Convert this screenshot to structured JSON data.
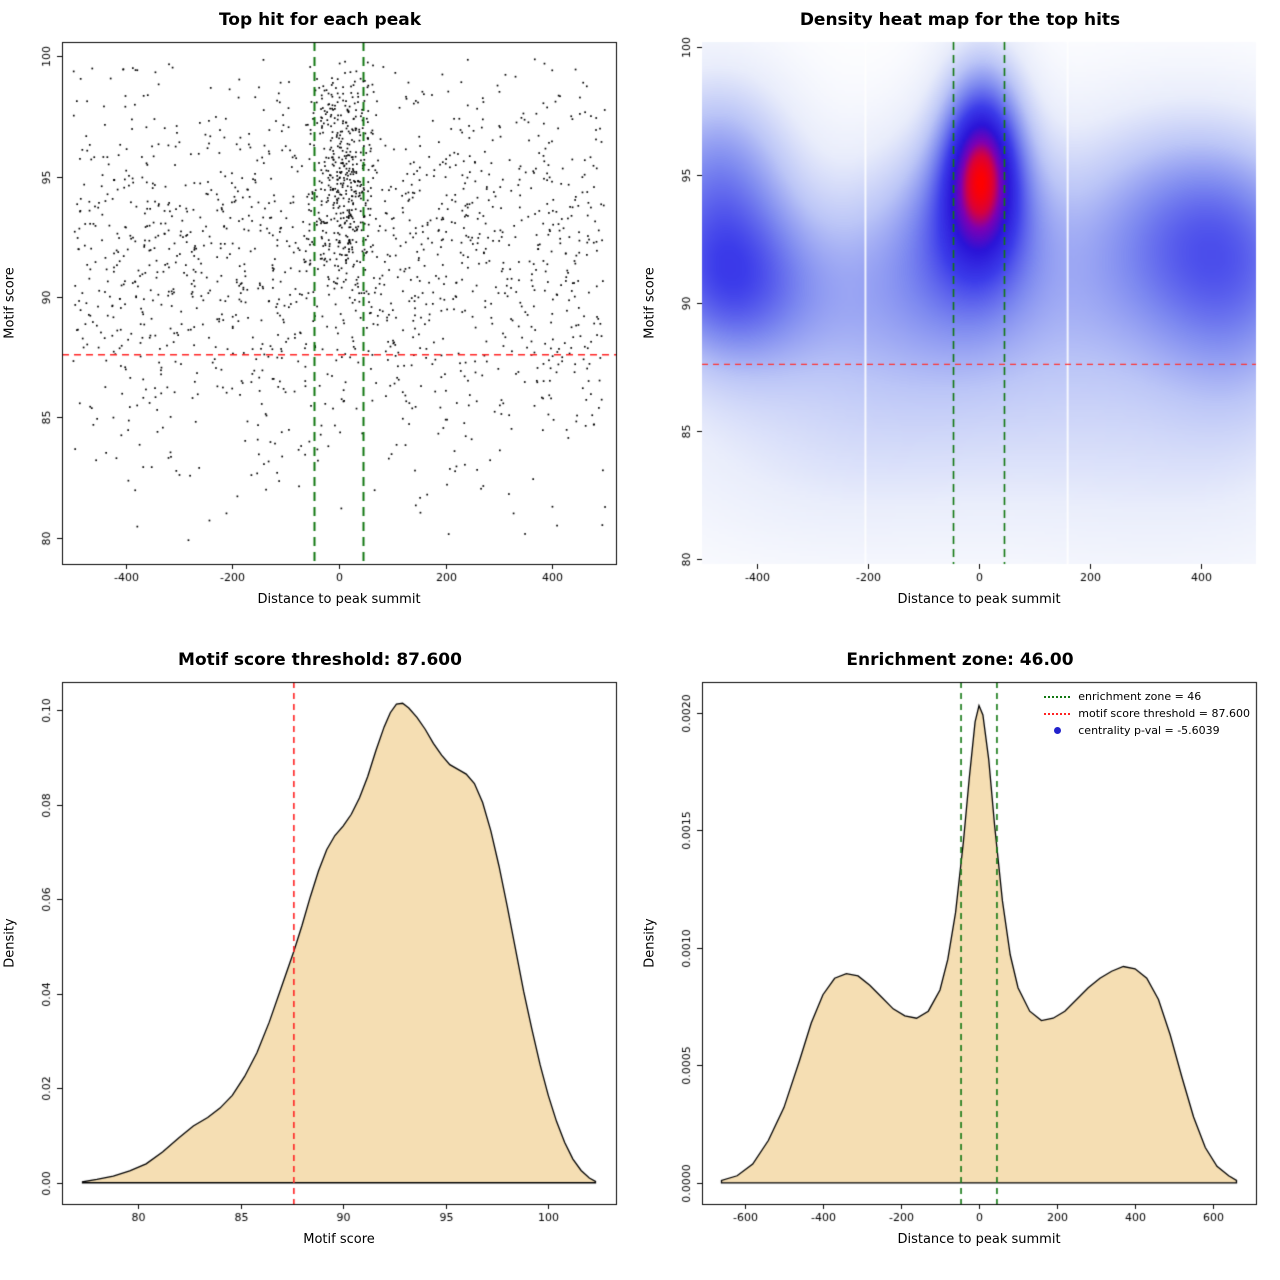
{
  "figure": {
    "background": "#ffffff"
  },
  "chart_data": [
    {
      "id": "top-hit-scatter",
      "type": "scatter",
      "title": "Top hit for each peak",
      "xlabel": "Distance to peak summit",
      "ylabel": "Motif score",
      "xlim": [
        -520,
        520
      ],
      "ylim": [
        78.9,
        100.6
      ],
      "xticks": {
        "values": [
          -400,
          -200,
          0,
          200,
          400
        ],
        "labels": [
          "-400",
          "-200",
          "0",
          "200",
          "400"
        ]
      },
      "yticks": {
        "values": [
          80,
          85,
          90,
          95,
          100
        ],
        "labels": [
          "80",
          "85",
          "90",
          "95",
          "100"
        ]
      },
      "point_color": "#000000",
      "threshold_line": {
        "y": 87.6,
        "color": "#ff2222",
        "style": "dashed"
      },
      "zone_lines": {
        "x": [
          -46,
          46
        ],
        "color": "#117711",
        "style": "dashed"
      },
      "points": {
        "seed": 11,
        "background": {
          "n": 1500,
          "x_min": -500,
          "x_max": 500,
          "y_mean": 91.4,
          "y_sd": 4.3,
          "y_min": 79.6,
          "y_max": 99.9
        },
        "cluster": {
          "n": 400,
          "x_mean": 12,
          "x_sd": 30,
          "x_min": -58,
          "x_max": 78,
          "y_mean": 95.2,
          "y_sd": 2.7,
          "y_min": 87.2,
          "y_max": 99.8
        }
      }
    },
    {
      "id": "density-heatmap",
      "type": "heatmap",
      "title": "Density heat map for the top hits",
      "xlabel": "Distance to peak summit",
      "ylabel": "Motif score",
      "xlim": [
        -500,
        500
      ],
      "ylim": [
        79.8,
        100.2
      ],
      "xticks": {
        "values": [
          -400,
          -200,
          0,
          200,
          400
        ],
        "labels": [
          "-400",
          "-200",
          "0",
          "200",
          "400"
        ]
      },
      "yticks": {
        "values": [
          80,
          85,
          90,
          95,
          100
        ],
        "labels": [
          "80",
          "85",
          "90",
          "95",
          "100"
        ]
      },
      "threshold_line": {
        "y": 87.6,
        "color": "#ff3333",
        "style": "dashed"
      },
      "zone_lines": {
        "x": [
          -46,
          46
        ],
        "color": "#117711",
        "style": "dashed"
      },
      "white_lines_x": [
        -205,
        160
      ],
      "gamma": 0.8,
      "colormap": [
        [
          0.0,
          "#ffffff"
        ],
        [
          0.15,
          "#e9edfb"
        ],
        [
          0.3,
          "#bcc6f7"
        ],
        [
          0.45,
          "#7e8af0"
        ],
        [
          0.62,
          "#3c3cea"
        ],
        [
          0.76,
          "#2a14d8"
        ],
        [
          0.87,
          "#7e00b4"
        ],
        [
          0.94,
          "#d8003c"
        ],
        [
          1.0,
          "#ff0000"
        ]
      ],
      "blobs": [
        {
          "x": 5,
          "y": 95.3,
          "sx": 46,
          "sy": 2.0,
          "w": 1.0
        },
        {
          "x": 0,
          "y": 93.6,
          "sx": 72,
          "sy": 2.6,
          "w": 0.62
        },
        {
          "x": 8,
          "y": 98.2,
          "sx": 55,
          "sy": 1.9,
          "w": 0.3
        },
        {
          "x": -70,
          "y": 92.6,
          "sx": 120,
          "sy": 3.0,
          "w": 0.32
        },
        {
          "x": -445,
          "y": 90.7,
          "sx": 105,
          "sy": 2.2,
          "w": 0.55
        },
        {
          "x": -470,
          "y": 95.4,
          "sx": 95,
          "sy": 2.6,
          "w": 0.4
        },
        {
          "x": -480,
          "y": 92.8,
          "sx": 100,
          "sy": 3.2,
          "w": 0.33
        },
        {
          "x": 435,
          "y": 92.8,
          "sx": 130,
          "sy": 2.9,
          "w": 0.45
        },
        {
          "x": 300,
          "y": 93.6,
          "sx": 150,
          "sy": 3.0,
          "w": 0.28
        },
        {
          "x": 210,
          "y": 90.2,
          "sx": 200,
          "sy": 3.0,
          "w": 0.24
        },
        {
          "x": -210,
          "y": 90.4,
          "sx": 180,
          "sy": 3.0,
          "w": 0.3
        },
        {
          "x": 480,
          "y": 89.8,
          "sx": 110,
          "sy": 3.4,
          "w": 0.33
        },
        {
          "x": 0,
          "y": 86.8,
          "sx": 430,
          "sy": 3.0,
          "w": 0.17
        },
        {
          "x": -260,
          "y": 83.4,
          "sx": 240,
          "sy": 2.8,
          "w": 0.13
        },
        {
          "x": 340,
          "y": 83.0,
          "sx": 240,
          "sy": 3.0,
          "w": 0.13
        }
      ]
    },
    {
      "id": "motif-score-density",
      "type": "density",
      "title": "Motif score threshold: 87.600",
      "xlabel": "Motif score",
      "ylabel": "Density",
      "xlim": [
        76.3,
        103.3
      ],
      "ylim": [
        -0.0045,
        0.106
      ],
      "xticks": {
        "values": [
          80,
          85,
          90,
          95,
          100
        ],
        "labels": [
          "80",
          "85",
          "90",
          "95",
          "100"
        ]
      },
      "yticks": {
        "values": [
          0,
          0.02,
          0.04,
          0.06,
          0.08,
          0.1
        ],
        "labels": [
          "0.00",
          "0.02",
          "0.04",
          "0.06",
          "0.08",
          "0.10"
        ]
      },
      "fill_color": "#f5deb3",
      "line_color": "#000000",
      "vlines": [
        {
          "x": 87.6,
          "color": "#ff2222",
          "style": "dashed"
        }
      ],
      "curve": [
        [
          77.3,
          0.0002
        ],
        [
          78.0,
          0.0007
        ],
        [
          78.8,
          0.0014
        ],
        [
          79.6,
          0.0025
        ],
        [
          80.4,
          0.004
        ],
        [
          81.2,
          0.0065
        ],
        [
          82.0,
          0.0095
        ],
        [
          82.7,
          0.012
        ],
        [
          83.4,
          0.0138
        ],
        [
          84.0,
          0.0158
        ],
        [
          84.6,
          0.0185
        ],
        [
          85.2,
          0.0225
        ],
        [
          85.8,
          0.0275
        ],
        [
          86.4,
          0.034
        ],
        [
          87.0,
          0.0415
        ],
        [
          87.6,
          0.049
        ],
        [
          88.0,
          0.0545
        ],
        [
          88.4,
          0.0605
        ],
        [
          88.8,
          0.066
        ],
        [
          89.2,
          0.0705
        ],
        [
          89.6,
          0.0735
        ],
        [
          90.0,
          0.0755
        ],
        [
          90.4,
          0.078
        ],
        [
          90.8,
          0.0815
        ],
        [
          91.2,
          0.086
        ],
        [
          91.6,
          0.0915
        ],
        [
          92.0,
          0.0965
        ],
        [
          92.3,
          0.0995
        ],
        [
          92.6,
          0.1013
        ],
        [
          92.9,
          0.1015
        ],
        [
          93.2,
          0.1005
        ],
        [
          93.6,
          0.0985
        ],
        [
          94.0,
          0.096
        ],
        [
          94.4,
          0.093
        ],
        [
          94.8,
          0.0905
        ],
        [
          95.2,
          0.0885
        ],
        [
          95.6,
          0.0875
        ],
        [
          96.0,
          0.0865
        ],
        [
          96.4,
          0.0845
        ],
        [
          96.8,
          0.0805
        ],
        [
          97.2,
          0.0745
        ],
        [
          97.6,
          0.067
        ],
        [
          98.0,
          0.0585
        ],
        [
          98.4,
          0.0495
        ],
        [
          98.8,
          0.0405
        ],
        [
          99.2,
          0.0325
        ],
        [
          99.6,
          0.025
        ],
        [
          100.0,
          0.0185
        ],
        [
          100.4,
          0.013
        ],
        [
          100.8,
          0.0085
        ],
        [
          101.2,
          0.005
        ],
        [
          101.6,
          0.0026
        ],
        [
          102.0,
          0.001
        ],
        [
          102.3,
          0.0003
        ]
      ]
    },
    {
      "id": "enrichment-zone-density",
      "type": "density",
      "title": "Enrichment zone: 46.00",
      "xlabel": "Distance to peak summit",
      "ylabel": "Density",
      "xlim": [
        -710,
        710
      ],
      "ylim": [
        -9e-05,
        0.00213
      ],
      "xticks": {
        "values": [
          -600,
          -400,
          -200,
          0,
          200,
          400,
          600
        ],
        "labels": [
          "-600",
          "-400",
          "-200",
          "0",
          "200",
          "400",
          "600"
        ]
      },
      "yticks": {
        "values": [
          0,
          0.0005,
          0.001,
          0.0015,
          0.002
        ],
        "labels": [
          "0.0000",
          "0.0005",
          "0.0010",
          "0.0015",
          "0.0020"
        ]
      },
      "fill_color": "#f5deb3",
      "line_color": "#000000",
      "vlines": [
        {
          "x": -46,
          "color": "#117711",
          "style": "dashed"
        },
        {
          "x": 46,
          "color": "#117711",
          "style": "dashed"
        }
      ],
      "curve": [
        [
          -660,
          1e-05
        ],
        [
          -620,
          3e-05
        ],
        [
          -580,
          8e-05
        ],
        [
          -540,
          0.00018
        ],
        [
          -500,
          0.00032
        ],
        [
          -460,
          0.00052
        ],
        [
          -430,
          0.00068
        ],
        [
          -400,
          0.0008
        ],
        [
          -370,
          0.00087
        ],
        [
          -340,
          0.00089
        ],
        [
          -310,
          0.00088
        ],
        [
          -280,
          0.00084
        ],
        [
          -250,
          0.00079
        ],
        [
          -220,
          0.00074
        ],
        [
          -190,
          0.00071
        ],
        [
          -160,
          0.0007
        ],
        [
          -130,
          0.00073
        ],
        [
          -100,
          0.00082
        ],
        [
          -80,
          0.00095
        ],
        [
          -60,
          0.00115
        ],
        [
          -40,
          0.00145
        ],
        [
          -25,
          0.00172
        ],
        [
          -10,
          0.00196
        ],
        [
          0,
          0.00203
        ],
        [
          10,
          0.00199
        ],
        [
          25,
          0.0018
        ],
        [
          40,
          0.00152
        ],
        [
          60,
          0.0012
        ],
        [
          80,
          0.00097
        ],
        [
          100,
          0.00083
        ],
        [
          130,
          0.00073
        ],
        [
          160,
          0.00069
        ],
        [
          190,
          0.0007
        ],
        [
          220,
          0.00073
        ],
        [
          250,
          0.00078
        ],
        [
          280,
          0.00083
        ],
        [
          310,
          0.00087
        ],
        [
          340,
          0.0009
        ],
        [
          370,
          0.00092
        ],
        [
          400,
          0.00091
        ],
        [
          430,
          0.00087
        ],
        [
          460,
          0.00078
        ],
        [
          490,
          0.00063
        ],
        [
          520,
          0.00045
        ],
        [
          550,
          0.00028
        ],
        [
          580,
          0.00015
        ],
        [
          610,
          7e-05
        ],
        [
          640,
          3e-05
        ],
        [
          660,
          1e-05
        ]
      ],
      "legend": {
        "items": [
          {
            "label": "enrichment zone = 46",
            "swatch": "green-dotted-line",
            "color": "#117711"
          },
          {
            "label": "motif score threshold = 87.600",
            "swatch": "red-dotted-line",
            "color": "#ff2222"
          },
          {
            "label": "centrality p-val = -5.6039",
            "swatch": "blue-point",
            "color": "#2222cc"
          }
        ]
      }
    }
  ]
}
